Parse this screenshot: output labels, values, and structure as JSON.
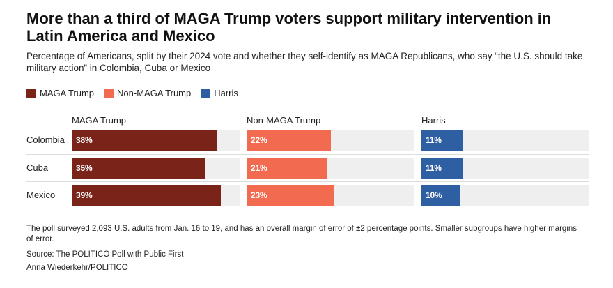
{
  "title": "More than a third of MAGA Trump voters support military intervention in Latin America and Mexico",
  "subtitle": "Percentage of Americans, split by their 2024 vote and whether they self-identify as MAGA Republicans, who say “the U.S. should take military action” in Colombia, Cuba or Mexico",
  "legend": [
    {
      "label": "MAGA Trump",
      "color": "#7a2318"
    },
    {
      "label": "Non-MAGA Trump",
      "color": "#f26a50"
    },
    {
      "label": "Harris",
      "color": "#2e5fa3"
    }
  ],
  "chart_data": {
    "type": "bar",
    "categories": [
      "Colombia",
      "Cuba",
      "Mexico"
    ],
    "series": [
      {
        "name": "MAGA Trump",
        "values": [
          38,
          35,
          39
        ],
        "labels": [
          "38%",
          "35%",
          "39%"
        ],
        "color": "#7a2318"
      },
      {
        "name": "Non-MAGA Trump",
        "values": [
          22,
          21,
          23
        ],
        "labels": [
          "22%",
          "21%",
          "23%"
        ],
        "color": "#f26a50"
      },
      {
        "name": "Harris",
        "values": [
          11,
          11,
          10
        ],
        "labels": [
          "11%",
          "11%",
          "10%"
        ],
        "color": "#2e5fa3"
      }
    ],
    "xlim": [
      0,
      44
    ]
  },
  "footer": {
    "note": "The poll surveyed 2,093 U.S. adults from Jan. 16 to 19, and has an overall margin of error of ±2 percentage points. Smaller subgroups have higher margins of error.",
    "source": "Source: The POLITICO Poll with Public First",
    "credit": "Anna Wiederkehr/POLITICO"
  }
}
